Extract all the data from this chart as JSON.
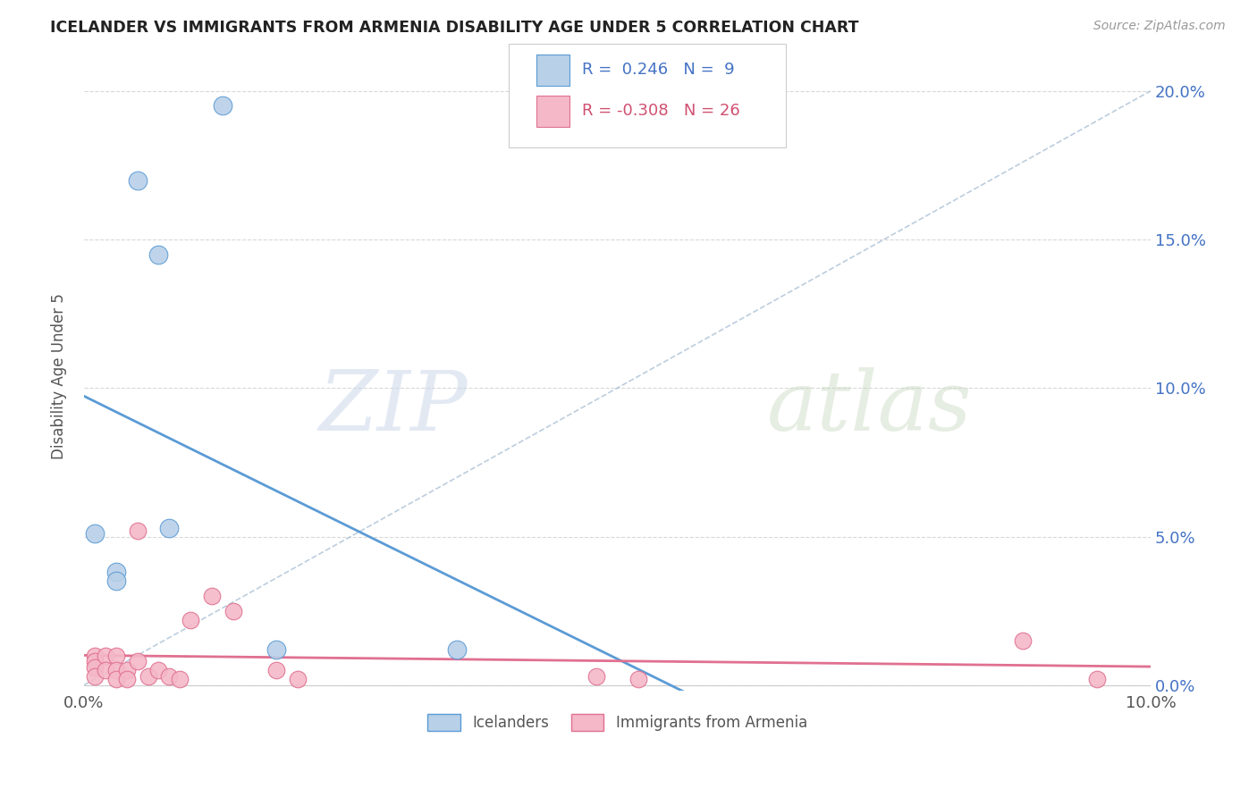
{
  "title": "ICELANDER VS IMMIGRANTS FROM ARMENIA DISABILITY AGE UNDER 5 CORRELATION CHART",
  "source": "Source: ZipAtlas.com",
  "ylabel": "Disability Age Under 5",
  "legend_label1": "Icelanders",
  "legend_label2": "Immigrants from Armenia",
  "R1": 0.246,
  "N1": 9,
  "R2": -0.308,
  "N2": 26,
  "color_blue": "#b8d0e8",
  "color_pink": "#f4b8c8",
  "color_blue_line": "#5b9bd5",
  "color_pink_line": "#e07090",
  "color_blue_text": "#4472c4",
  "color_pink_text": "#d05070",
  "icelanders_x": [
    0.001,
    0.005,
    0.013,
    0.007,
    0.003,
    0.003,
    0.008,
    0.018,
    0.035
  ],
  "icelanders_y": [
    0.051,
    0.17,
    0.195,
    0.145,
    0.038,
    0.035,
    0.053,
    0.012,
    0.012
  ],
  "armenia_x": [
    0.001,
    0.001,
    0.001,
    0.001,
    0.002,
    0.002,
    0.003,
    0.003,
    0.003,
    0.004,
    0.004,
    0.005,
    0.005,
    0.006,
    0.007,
    0.008,
    0.009,
    0.01,
    0.012,
    0.014,
    0.018,
    0.02,
    0.048,
    0.052,
    0.088,
    0.095
  ],
  "armenia_y": [
    0.01,
    0.008,
    0.006,
    0.003,
    0.01,
    0.005,
    0.01,
    0.005,
    0.002,
    0.005,
    0.002,
    0.052,
    0.008,
    0.003,
    0.005,
    0.003,
    0.002,
    0.022,
    0.03,
    0.025,
    0.005,
    0.002,
    0.003,
    0.002,
    0.015,
    0.002
  ],
  "xlim": [
    0.0,
    0.1
  ],
  "ylim": [
    -0.002,
    0.21
  ],
  "yticks": [
    0.0,
    0.05,
    0.1,
    0.15,
    0.2
  ],
  "ytick_labels": [
    "0.0%",
    "5.0%",
    "10.0%",
    "15.0%",
    "20.0%"
  ],
  "watermark_zip": "ZIP",
  "watermark_atlas": "atlas",
  "background_color": "#ffffff",
  "grid_color": "#d8d8d8"
}
